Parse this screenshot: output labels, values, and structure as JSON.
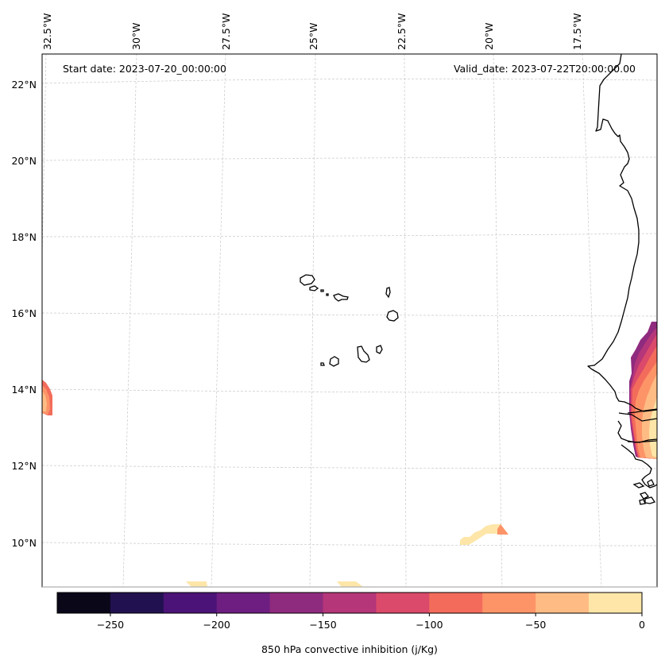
{
  "figure": {
    "start_date_label": "Start date: 2023-07-20_00:00:00",
    "valid_date_label": "Valid_date: 2023-07-22T20:00:00.00"
  },
  "map": {
    "lon_labels": [
      "32.5°W",
      "30°W",
      "27.5°W",
      "25°W",
      "22.5°W",
      "20°W",
      "17.5°W"
    ],
    "lat_labels": [
      "22°N",
      "20°N",
      "18°N",
      "16°N",
      "14°N",
      "12°N",
      "10°N"
    ],
    "lon_values": [
      -32.5,
      -30,
      -27.5,
      -25,
      -22.5,
      -20,
      -17.5
    ],
    "lat_values": [
      22,
      20,
      18,
      16,
      14,
      12,
      10
    ],
    "extent": {
      "lon_min": -32.6,
      "lon_max": -15.5,
      "lat_min": 9.0,
      "lat_max": 22.8
    },
    "features": [
      "Cape Verde islands",
      "West African coastline (Mauritania, Senegal, Gambia, Guinea-Bissau, Guinea)"
    ]
  },
  "colorbar": {
    "label": "850 hPa convective inhibition (j/Kg)",
    "ticks": [
      "−250",
      "−200",
      "−150",
      "−100",
      "−50",
      "0"
    ],
    "tick_values": [
      -250,
      -200,
      -150,
      -100,
      -50,
      0
    ],
    "vmin": -275,
    "vmax": 0,
    "levels": [
      -275,
      -250,
      -225,
      -200,
      -175,
      -150,
      -125,
      -100,
      -75,
      -50,
      -25,
      0
    ],
    "colors": [
      "#0a0719",
      "#221150",
      "#4b1377",
      "#6e1e81",
      "#8f2b7e",
      "#b53679",
      "#db4a6a",
      "#f36c5b",
      "#fd9467",
      "#febc84",
      "#fde6a8"
    ]
  },
  "chart_data": {
    "type": "heatmap",
    "title": "",
    "annotations": [
      "Start date: 2023-07-20_00:00:00",
      "Valid_date: 2023-07-22T20:00:00.00"
    ],
    "xlabel": "Longitude",
    "ylabel": "Latitude",
    "x_ticks": [
      "32.5°W",
      "30°W",
      "27.5°W",
      "25°W",
      "22.5°W",
      "20°W",
      "17.5°W"
    ],
    "y_ticks": [
      "22°N",
      "20°N",
      "18°N",
      "16°N",
      "14°N",
      "12°N",
      "10°N"
    ],
    "colorbar_label": "850 hPa convective inhibition (j/Kg)",
    "colorbar_range": [
      -275,
      0
    ],
    "grid": true,
    "regions": [
      {
        "name": "West African coast (Senegal/Gambia)",
        "lat_range": [
          12.2,
          15.8
        ],
        "lon_range": [
          -16.6,
          -15.5
        ],
        "value_range": [
          -150,
          0
        ]
      },
      {
        "name": "Western edge near 14°N",
        "lat_range": [
          13.5,
          14.3
        ],
        "lon_range": [
          -32.6,
          -32.3
        ],
        "value_range": [
          -100,
          -25
        ]
      },
      {
        "name": "Patch near 10.3°N, 21°W",
        "lat_range": [
          10.0,
          10.5
        ],
        "lon_range": [
          -21.2,
          -20.0
        ],
        "value_range": [
          -50,
          0
        ]
      },
      {
        "name": "Patches at southern edge",
        "lat_range": [
          9.0,
          9.1
        ],
        "lon_range": [
          -29,
          -23
        ],
        "value_range": [
          -25,
          0
        ]
      }
    ]
  }
}
